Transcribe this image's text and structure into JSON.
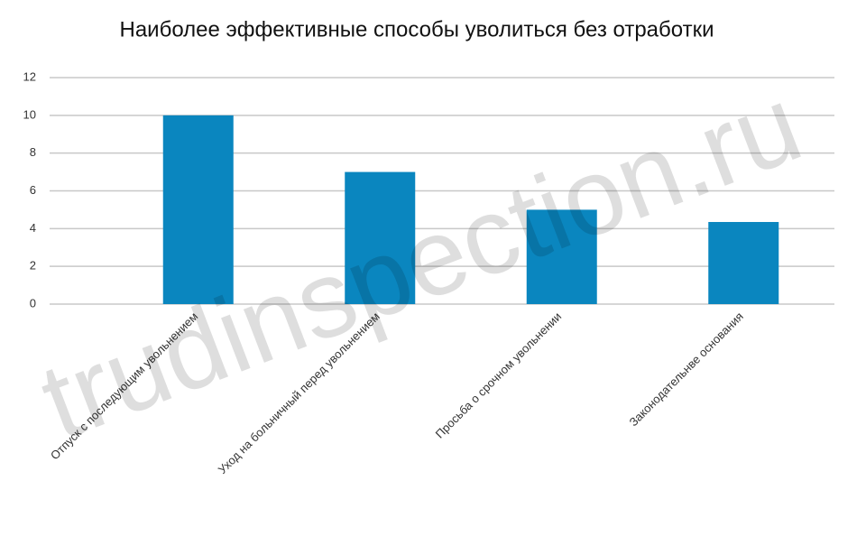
{
  "chart_data": {
    "type": "bar",
    "title": "Наиболее эффективные способы уволиться без отработки",
    "categories": [
      "Отпуск с последующим увольнением",
      "Уход на больничный перед увольнением",
      "Просьба о срочном увольнении",
      "Законодательнве основания"
    ],
    "values": [
      10,
      7,
      5,
      4.35
    ],
    "color": "#0a86bf",
    "ylim": [
      0,
      12
    ],
    "yticks": [
      0,
      2,
      4,
      6,
      8,
      10,
      12
    ],
    "grid": true,
    "watermark": "trudinspection.ru"
  }
}
